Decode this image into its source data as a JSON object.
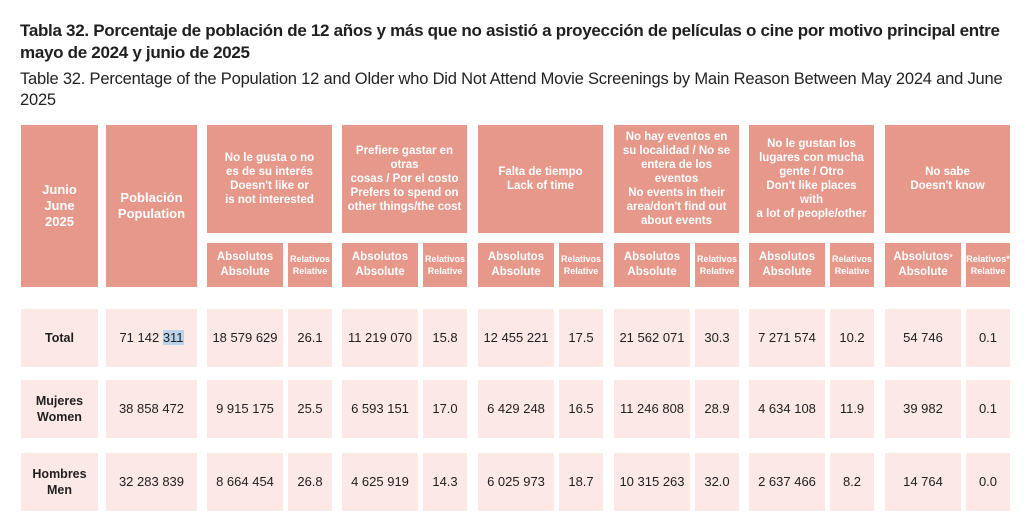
{
  "title": {
    "es": "Tabla 32. Porcentaje de población de 12 años y más que no asistió a proyección de películas o cine por motivo principal entre mayo de 2024 y junio de 2025",
    "en": "Table 32. Percentage of the Population 12 and Older who Did Not Attend Movie Screenings by Main Reason Between May 2024 and June 2025"
  },
  "header": {
    "period": {
      "l1": "Junio",
      "l2": "June",
      "l3": "2025"
    },
    "population": {
      "l1": "Población",
      "l2": "Population"
    },
    "reasons": [
      {
        "lines": [
          "No le gusta o no",
          "es de su interés",
          "Doesn't like or",
          "is not interested"
        ]
      },
      {
        "lines": [
          "Prefiere gastar en otras",
          "cosas / Por el costo",
          "Prefers to spend on",
          "other things/the cost"
        ]
      },
      {
        "lines": [
          "Falta de tiempo",
          "Lack of time"
        ]
      },
      {
        "lines": [
          "No hay eventos en",
          "su localidad / No se",
          "entera de los eventos",
          "No events in their",
          "area/don't find out",
          "about events"
        ]
      },
      {
        "lines": [
          "No le gustan los",
          "lugares con mucha",
          "gente / Otro",
          "Don't like places with",
          "a lot of people/other"
        ]
      },
      {
        "lines": [
          "No sabe",
          "Doesn't know"
        ]
      }
    ],
    "absolute": {
      "l1": "Absolutos",
      "l2": "Absolute"
    },
    "relative": {
      "l1": "Relativos",
      "l2": "Relative"
    },
    "asterisk": "*"
  },
  "rows": [
    {
      "label_l1": "Total",
      "label_l2": "",
      "population": {
        "pre": "71 142 ",
        "hl": "311"
      },
      "values": [
        "18 579 629",
        "26.1",
        "11 219 070",
        "15.8",
        "12 455 221",
        "17.5",
        "21 562 071",
        "30.3",
        "7 271 574",
        "10.2",
        "54 746",
        "0.1"
      ]
    },
    {
      "label_l1": "Mujeres",
      "label_l2": "Women",
      "population": {
        "pre": "38 858 472",
        "hl": ""
      },
      "values": [
        "9 915 175",
        "25.5",
        "6 593 151",
        "17.0",
        "6 429 248",
        "16.5",
        "11 246 808",
        "28.9",
        "4 634 108",
        "11.9",
        "39 982",
        "0.1"
      ]
    },
    {
      "label_l1": "Hombres",
      "label_l2": "Men",
      "population": {
        "pre": "32 283 839",
        "hl": ""
      },
      "values": [
        "8 664 454",
        "26.8",
        "4 625 919",
        "14.3",
        "6 025 973",
        "18.7",
        "10 315 263",
        "32.0",
        "2 637 466",
        "8.2",
        "14 764",
        "0.0"
      ]
    }
  ],
  "colors": {
    "header": "#e6988b",
    "body": "#fce8e4",
    "highlight": "#b9d3ea"
  }
}
